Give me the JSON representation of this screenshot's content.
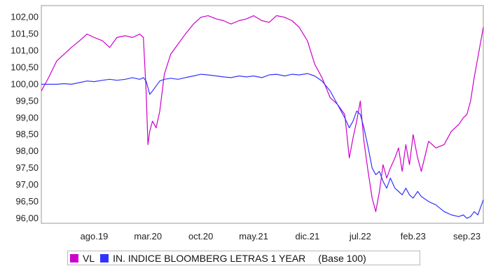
{
  "chart_data": {
    "type": "line",
    "title": "",
    "xlabel": "",
    "ylabel": "",
    "ylim": [
      95.85,
      102.35
    ],
    "grid": false,
    "legend_position": "bottom",
    "y_ticks": [
      "102,00",
      "101,50",
      "101,00",
      "100,50",
      "100,00",
      "99,50",
      "99,00",
      "98,50",
      "98,00",
      "97,50",
      "97,00",
      "96,50",
      "96,00"
    ],
    "y_tick_values": [
      102.0,
      101.5,
      101.0,
      100.5,
      100.0,
      99.5,
      99.0,
      98.5,
      98.0,
      97.5,
      97.0,
      96.5,
      96.0
    ],
    "x_ticks": [
      "ago.19",
      "mar.20",
      "oct.20",
      "may.21",
      "dic.21",
      "jul.22",
      "feb.23",
      "sep.23"
    ],
    "x_tick_positions": [
      2019.58,
      2020.17,
      2020.75,
      2021.33,
      2021.92,
      2022.5,
      2023.08,
      2023.67
    ],
    "xlim": [
      2019.0,
      2023.85
    ],
    "series": [
      {
        "name": "VL",
        "color": "#cc00cc",
        "x": [
          2019.0,
          2019.08,
          2019.17,
          2019.25,
          2019.33,
          2019.42,
          2019.5,
          2019.58,
          2019.67,
          2019.75,
          2019.83,
          2019.92,
          2020.0,
          2020.08,
          2020.12,
          2020.15,
          2020.17,
          2020.19,
          2020.22,
          2020.26,
          2020.3,
          2020.35,
          2020.42,
          2020.5,
          2020.58,
          2020.67,
          2020.75,
          2020.83,
          2020.92,
          2021.0,
          2021.08,
          2021.17,
          2021.25,
          2021.33,
          2021.42,
          2021.5,
          2021.58,
          2021.67,
          2021.75,
          2021.83,
          2021.92,
          2022.0,
          2022.08,
          2022.17,
          2022.25,
          2022.33,
          2022.38,
          2022.42,
          2022.46,
          2022.5,
          2022.54,
          2022.58,
          2022.63,
          2022.67,
          2022.71,
          2022.75,
          2022.79,
          2022.83,
          2022.88,
          2022.92,
          2022.96,
          2023.0,
          2023.04,
          2023.08,
          2023.13,
          2023.17,
          2023.25,
          2023.33,
          2023.42,
          2023.5,
          2023.58,
          2023.63,
          2023.67,
          2023.71,
          2023.75,
          2023.79,
          2023.83,
          2023.85
        ],
        "values": [
          99.8,
          100.2,
          100.7,
          100.9,
          101.1,
          101.3,
          101.5,
          101.4,
          101.3,
          101.1,
          101.4,
          101.45,
          101.4,
          101.5,
          101.4,
          99.8,
          98.2,
          98.6,
          98.9,
          98.7,
          99.2,
          100.3,
          100.9,
          101.2,
          101.5,
          101.8,
          102.0,
          102.05,
          101.95,
          101.9,
          101.8,
          101.9,
          101.95,
          102.05,
          101.9,
          101.85,
          102.05,
          102.0,
          101.9,
          101.7,
          101.3,
          100.6,
          100.2,
          99.6,
          99.4,
          99.1,
          97.8,
          98.4,
          98.9,
          99.5,
          98.3,
          97.5,
          96.6,
          96.2,
          96.8,
          97.6,
          97.2,
          97.5,
          97.8,
          98.1,
          97.4,
          98.2,
          97.6,
          98.5,
          97.8,
          97.4,
          98.3,
          98.1,
          98.2,
          98.6,
          98.8,
          99.0,
          99.1,
          99.5,
          100.2,
          100.8,
          101.4,
          101.7
        ]
      },
      {
        "name": "IN. INDICE BLOOMBERG LETRAS 1 YEAR",
        "color": "#3333ff",
        "x": [
          2019.0,
          2019.08,
          2019.17,
          2019.25,
          2019.33,
          2019.42,
          2019.5,
          2019.58,
          2019.67,
          2019.75,
          2019.83,
          2019.92,
          2020.0,
          2020.08,
          2020.12,
          2020.15,
          2020.17,
          2020.19,
          2020.22,
          2020.26,
          2020.3,
          2020.35,
          2020.42,
          2020.5,
          2020.58,
          2020.67,
          2020.75,
          2020.83,
          2020.92,
          2021.0,
          2021.08,
          2021.17,
          2021.25,
          2021.33,
          2021.42,
          2021.5,
          2021.58,
          2021.67,
          2021.75,
          2021.83,
          2021.92,
          2022.0,
          2022.08,
          2022.17,
          2022.25,
          2022.33,
          2022.38,
          2022.42,
          2022.46,
          2022.5,
          2022.54,
          2022.58,
          2022.63,
          2022.67,
          2022.71,
          2022.75,
          2022.79,
          2022.83,
          2022.88,
          2022.92,
          2022.96,
          2023.0,
          2023.04,
          2023.08,
          2023.13,
          2023.17,
          2023.25,
          2023.33,
          2023.42,
          2023.5,
          2023.58,
          2023.63,
          2023.67,
          2023.71,
          2023.75,
          2023.79,
          2023.83,
          2023.85
        ],
        "values": [
          100.0,
          100.0,
          100.0,
          100.02,
          100.0,
          100.05,
          100.1,
          100.08,
          100.12,
          100.15,
          100.12,
          100.15,
          100.2,
          100.15,
          100.2,
          100.1,
          99.9,
          99.7,
          99.8,
          99.95,
          100.1,
          100.15,
          100.18,
          100.15,
          100.2,
          100.25,
          100.3,
          100.28,
          100.25,
          100.22,
          100.2,
          100.25,
          100.22,
          100.25,
          100.2,
          100.28,
          100.3,
          100.25,
          100.3,
          100.28,
          100.32,
          100.25,
          100.1,
          99.8,
          99.4,
          99.0,
          98.7,
          98.9,
          99.2,
          99.1,
          98.7,
          98.2,
          97.5,
          97.3,
          97.4,
          97.1,
          96.9,
          97.2,
          96.9,
          96.8,
          96.7,
          96.9,
          96.7,
          96.6,
          96.8,
          96.65,
          96.5,
          96.4,
          96.2,
          96.1,
          96.05,
          96.1,
          96.0,
          96.05,
          96.2,
          96.1,
          96.4,
          96.55
        ]
      }
    ],
    "legend_note": "(Base 100)"
  }
}
